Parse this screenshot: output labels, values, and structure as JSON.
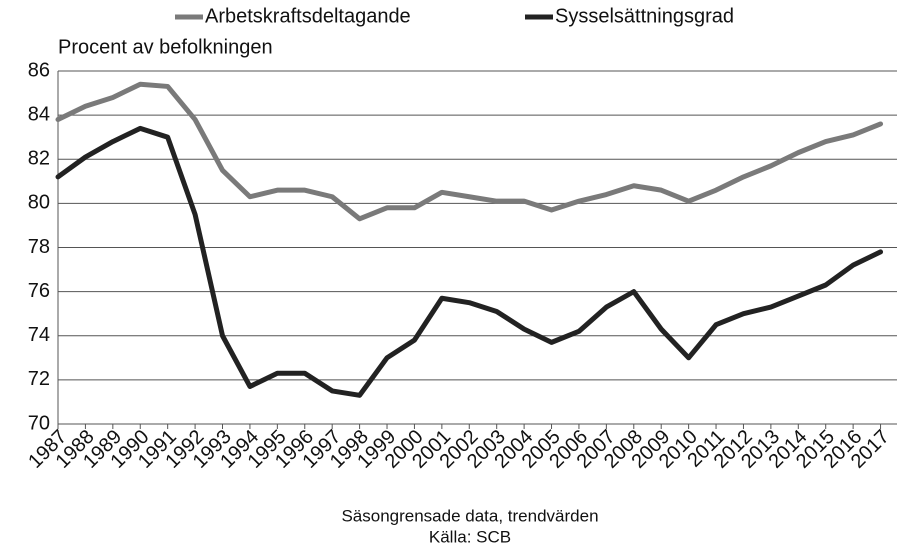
{
  "chart_data": {
    "type": "line",
    "y_label": "Procent av befolkningen",
    "footnotes": [
      "Säsongrensade data, trendvärden",
      "Källa:  SCB"
    ],
    "x": [
      1987,
      1988,
      1989,
      1990,
      1991,
      1992,
      1993,
      1994,
      1995,
      1996,
      1997,
      1998,
      1999,
      2000,
      2001,
      2002,
      2003,
      2004,
      2005,
      2006,
      2007,
      2008,
      2009,
      2010,
      2011,
      2012,
      2013,
      2014,
      2015,
      2016,
      2017
    ],
    "series": [
      {
        "name": "Arbetskraftsdeltagande",
        "color": "#7a7a7a",
        "values": [
          83.8,
          84.4,
          84.8,
          85.4,
          85.3,
          83.8,
          81.5,
          80.3,
          80.6,
          80.6,
          80.3,
          79.3,
          79.8,
          79.8,
          80.5,
          80.3,
          80.1,
          80.1,
          79.7,
          80.1,
          80.4,
          80.8,
          80.6,
          80.1,
          80.6,
          81.2,
          81.7,
          82.3,
          82.8,
          83.1,
          83.6
        ]
      },
      {
        "name": "Sysselsättningsgrad",
        "color": "#222222",
        "values": [
          81.2,
          82.1,
          82.8,
          83.4,
          83.0,
          79.5,
          74.0,
          71.7,
          72.3,
          72.3,
          71.5,
          71.3,
          73.0,
          73.8,
          75.7,
          75.5,
          75.1,
          74.3,
          73.7,
          74.2,
          75.3,
          76.0,
          74.3,
          73.0,
          74.5,
          75.0,
          75.3,
          75.8,
          76.3,
          77.2,
          77.8
        ]
      }
    ],
    "xlim": [
      1987,
      2017.6
    ],
    "xticks": [
      1987,
      1988,
      1989,
      1990,
      1991,
      1992,
      1993,
      1994,
      1995,
      1996,
      1997,
      1998,
      1999,
      2000,
      2001,
      2002,
      2003,
      2004,
      2005,
      2006,
      2007,
      2008,
      2009,
      2010,
      2011,
      2012,
      2013,
      2014,
      2015,
      2016,
      2017
    ],
    "ylim": [
      70,
      86
    ],
    "yticks": [
      70,
      72,
      74,
      76,
      78,
      80,
      82,
      84,
      86
    ],
    "grid": true,
    "legend": "top"
  }
}
